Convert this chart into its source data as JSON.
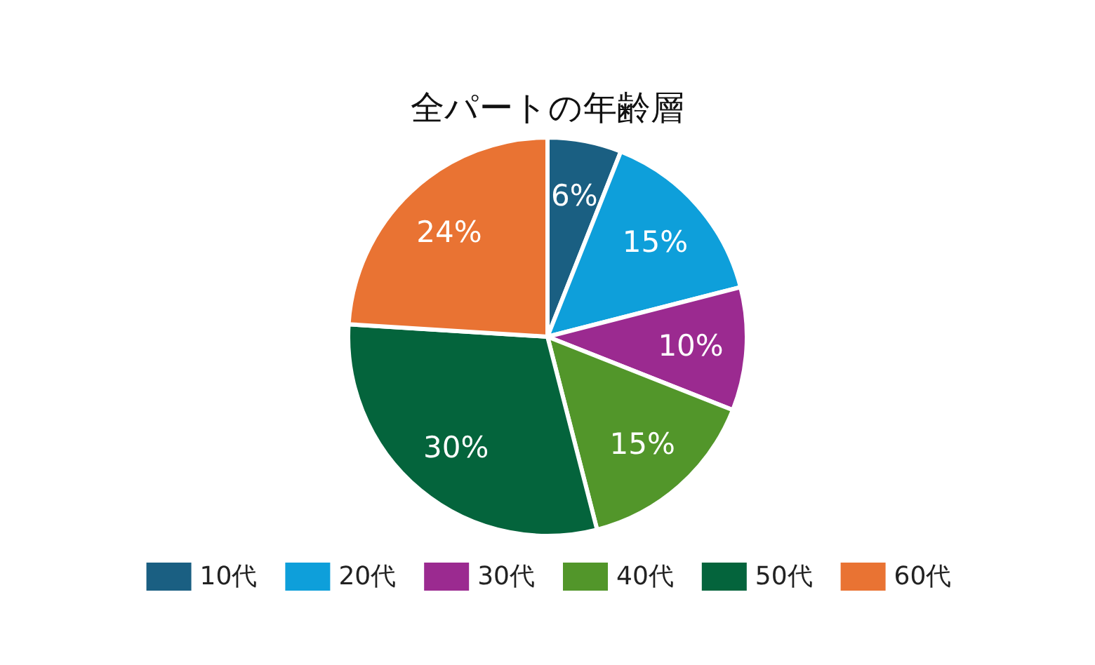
{
  "chart_data": {
    "type": "pie",
    "title": "全パートの年齢層",
    "categories": [
      "10代",
      "20代",
      "30代",
      "40代",
      "50代",
      "60代"
    ],
    "values": [
      6,
      15,
      10,
      15,
      30,
      24
    ],
    "colors": [
      "#1a5f82",
      "#0e9fda",
      "#9b2a90",
      "#52962a",
      "#04643c",
      "#e97333"
    ],
    "value_labels": [
      "6%",
      "15%",
      "10%",
      "15%",
      "30%",
      "24%"
    ],
    "legend": "bottom"
  }
}
